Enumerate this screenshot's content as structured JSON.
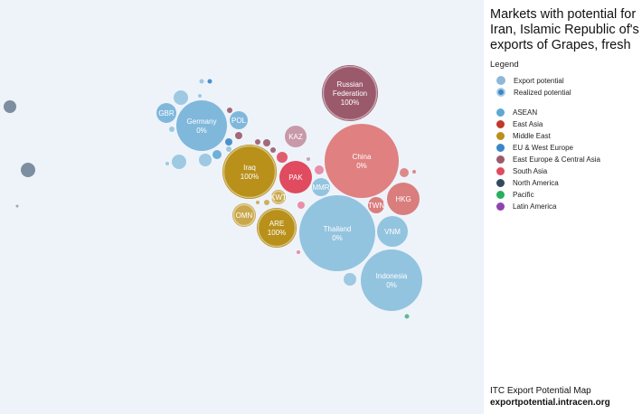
{
  "title": "Markets with potential for Iran, Islamic Republic of's exports of Grapes, fresh",
  "legend": {
    "title": "Legend",
    "items": [
      {
        "label": "Export potential",
        "kind": "potential"
      },
      {
        "label": "Realized potential",
        "kind": "realized"
      }
    ],
    "regions": [
      {
        "label": "ASEAN",
        "color": "#5ea8d4"
      },
      {
        "label": "East Asia",
        "color": "#c0392b"
      },
      {
        "label": "Middle East",
        "color": "#b8901a"
      },
      {
        "label": "EU & West Europe",
        "color": "#3a86c8"
      },
      {
        "label": "East Europe & Central Asia",
        "color": "#9a5a6c"
      },
      {
        "label": "South Asia",
        "color": "#e04b5f"
      },
      {
        "label": "North America",
        "color": "#34495e"
      },
      {
        "label": "Pacific",
        "color": "#27ae60"
      },
      {
        "label": "Latin America",
        "color": "#8e44ad"
      }
    ]
  },
  "footer": {
    "line1": "ITC Export Potential Map",
    "line2": "exportpotential.intracen.org"
  },
  "chart_data": {
    "type": "bubble",
    "bubbles": [
      {
        "code": "Russian Federation",
        "lines": [
          "Russian",
          "Federation"
        ],
        "pct": "100%",
        "color": "#9a5a6c"
      },
      {
        "code": "China",
        "lines": [
          "China"
        ],
        "pct": "0%",
        "color": "#e08080"
      },
      {
        "code": "Thailand",
        "lines": [
          "Thailand"
        ],
        "pct": "0%",
        "color": "#93c4df"
      },
      {
        "code": "Indonesia",
        "lines": [
          "Indonesia"
        ],
        "pct": "0%",
        "color": "#93c4df"
      },
      {
        "code": "Iraq",
        "lines": [
          "Iraq"
        ],
        "pct": "100%",
        "color": "#b8901a"
      },
      {
        "code": "Germany",
        "lines": [
          "Germany"
        ],
        "pct": "0%",
        "color": "#80b8dc"
      },
      {
        "code": "ARE",
        "lines": [
          "ARE"
        ],
        "pct": "100%",
        "color": "#b8901a"
      },
      {
        "code": "HKG",
        "lines": [
          "HKG"
        ],
        "pct": "",
        "color": "#da7d7d"
      },
      {
        "code": "PAK",
        "lines": [
          "PAK"
        ],
        "pct": "",
        "color": "#e04b5f"
      },
      {
        "code": "VNM",
        "lines": [
          "VNM"
        ],
        "pct": "",
        "color": "#93c4df"
      },
      {
        "code": "KAZ",
        "lines": [
          "KAZ"
        ],
        "pct": "",
        "color": "#c899a8"
      },
      {
        "code": "OMN",
        "lines": [
          "OMN"
        ],
        "pct": "",
        "color": "#c9a84c"
      },
      {
        "code": "GBR",
        "lines": [
          "GBR"
        ],
        "pct": "",
        "color": "#80b8dc"
      },
      {
        "code": "POL",
        "lines": [
          "POL"
        ],
        "pct": "",
        "color": "#80b8dc"
      },
      {
        "code": "MMR",
        "lines": [
          "MMR"
        ],
        "pct": "",
        "color": "#93c4df"
      },
      {
        "code": "TWN",
        "lines": [
          "TWN"
        ],
        "pct": "",
        "color": "#da7d7d"
      },
      {
        "code": "KWT",
        "lines": [
          "KWT"
        ],
        "pct": "",
        "color": "#c9a84c"
      }
    ]
  }
}
